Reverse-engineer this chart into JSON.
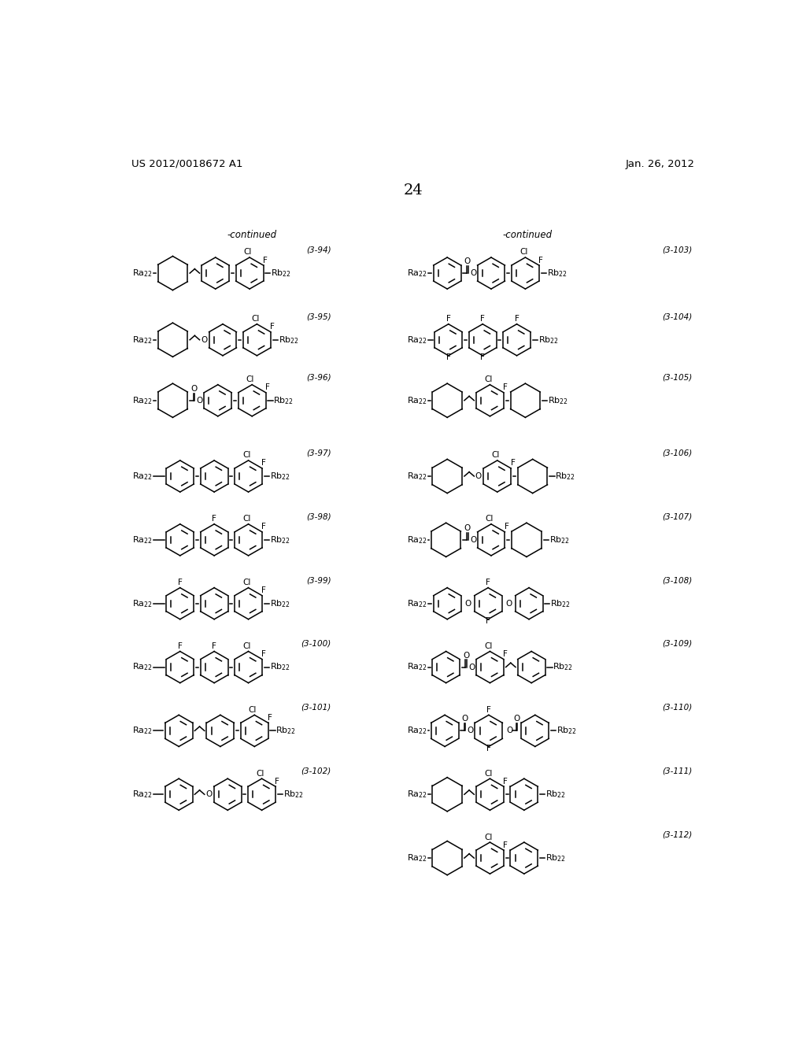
{
  "page_header_left": "US 2012/0018672 A1",
  "page_header_right": "Jan. 26, 2012",
  "page_number": "24",
  "background_color": "#ffffff",
  "text_color": "#000000",
  "continued_left": "-continued",
  "continued_right": "-continued",
  "figsize": [
    10.24,
    13.2
  ],
  "dpi": 100
}
